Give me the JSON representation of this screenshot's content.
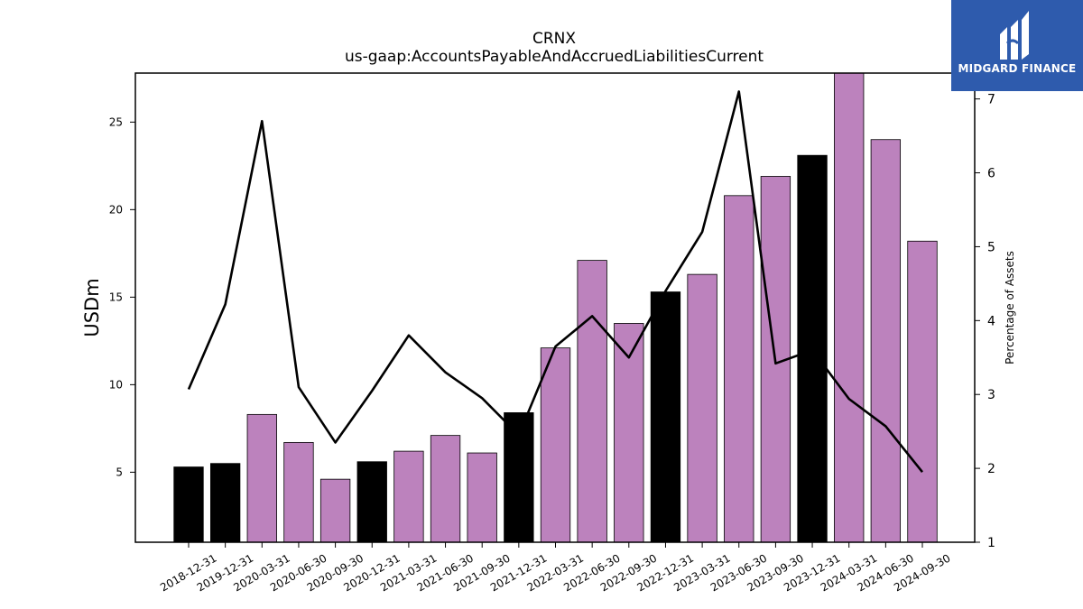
{
  "chart_data": {
    "type": "bar",
    "title": "CRNX",
    "subtitle": "us-gaap:AccountsPayableAndAccruedLiabilitiesCurrent",
    "ylabel": "USDm",
    "ylabel_right": "Percentage of Assets",
    "categories": [
      "2018-12-31",
      "2019-12-31",
      "2020-03-31",
      "2020-06-30",
      "2020-09-30",
      "2020-12-31",
      "2021-03-31",
      "2021-06-30",
      "2021-09-30",
      "2021-12-31",
      "2022-03-31",
      "2022-06-30",
      "2022-09-30",
      "2022-12-31",
      "2023-03-31",
      "2023-06-30",
      "2023-09-30",
      "2023-12-31",
      "2024-03-31",
      "2024-06-30",
      "2024-09-30"
    ],
    "series": [
      {
        "type": "bar",
        "axis": "left",
        "values": [
          5.3,
          5.5,
          8.3,
          6.7,
          4.6,
          5.6,
          6.2,
          7.1,
          6.1,
          8.4,
          12.1,
          17.1,
          13.5,
          15.3,
          16.3,
          20.8,
          21.9,
          23.1,
          27.8,
          24.0,
          18.2
        ],
        "colors": [
          "#000000",
          "#000000",
          "#bc82bd",
          "#bc82bd",
          "#bc82bd",
          "#000000",
          "#bc82bd",
          "#bc82bd",
          "#bc82bd",
          "#000000",
          "#bc82bd",
          "#bc82bd",
          "#bc82bd",
          "#000000",
          "#bc82bd",
          "#bc82bd",
          "#bc82bd",
          "#000000",
          "#bc82bd",
          "#bc82bd",
          "#bc82bd"
        ]
      },
      {
        "type": "line",
        "axis": "right",
        "color": "#000000",
        "values": [
          3.07,
          4.22,
          6.7,
          3.1,
          2.35,
          3.05,
          3.8,
          3.3,
          2.95,
          2.45,
          3.65,
          4.06,
          3.5,
          4.4,
          5.2,
          7.1,
          3.42,
          3.6,
          2.94,
          2.57,
          1.95
        ]
      }
    ],
    "ylim": [
      1,
      27.8
    ],
    "yticks": [
      "5",
      "10",
      "15",
      "20",
      "25"
    ],
    "ylim_right": [
      1,
      7.35
    ],
    "yticks_right": [
      "1",
      "2",
      "3",
      "4",
      "5",
      "6",
      "7"
    ],
    "grid": false,
    "legend": "none",
    "colors": {
      "bar_primary": "#bc82bd",
      "bar_highlight": "#000000",
      "line": "#000000"
    }
  },
  "logo": {
    "text": "MIDGARD FINANCE",
    "background": "#2e5bad"
  }
}
